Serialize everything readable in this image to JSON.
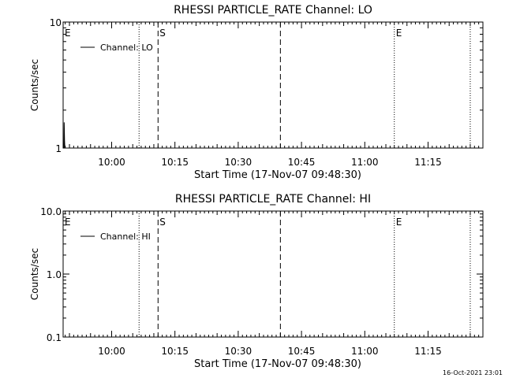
{
  "footer_timestamp": "16-Oct-2021 23:01",
  "colors": {
    "background": "#ffffff",
    "foreground": "#000000"
  },
  "chart_data": [
    {
      "type": "line",
      "title": "RHESSI PARTICLE_RATE Channel: LO",
      "xlabel": "Start Time (17-Nov-07 09:48:30)",
      "ylabel": "Counts/sec",
      "y_scale": "log",
      "ylim": [
        1,
        10
      ],
      "y_ticks": [
        {
          "value": 1,
          "label": "1"
        },
        {
          "value": 10,
          "label": "10"
        }
      ],
      "xlim": [
        "09:48:30",
        "11:28:00"
      ],
      "x_ticks": [
        "10:00",
        "10:15",
        "10:30",
        "10:45",
        "11:00",
        "11:15"
      ],
      "series": [
        {
          "name": "Channel: LO",
          "x": [
            "09:48:45",
            "09:48:50",
            "09:48:55"
          ],
          "y": [
            1.6,
            1.15,
            1.0
          ]
        }
      ],
      "legend": "upper-left",
      "markers": [
        {
          "time": "09:48:30",
          "style": "dotted",
          "label": "E"
        },
        {
          "time": "10:06:30",
          "style": "dotted",
          "label": ""
        },
        {
          "time": "10:11:00",
          "style": "dashed",
          "label": "S"
        },
        {
          "time": "10:40:00",
          "style": "dashed",
          "label": ""
        },
        {
          "time": "11:07:00",
          "style": "dotted",
          "label": "E"
        },
        {
          "time": "11:25:00",
          "style": "dotted",
          "label": ""
        }
      ]
    },
    {
      "type": "line",
      "title": "RHESSI PARTICLE_RATE Channel: HI",
      "xlabel": "Start Time (17-Nov-07 09:48:30)",
      "ylabel": "Counts/sec",
      "y_scale": "log",
      "ylim": [
        0.1,
        10
      ],
      "y_ticks": [
        {
          "value": 0.1,
          "label": "0.1"
        },
        {
          "value": 1,
          "label": "1.0"
        },
        {
          "value": 10,
          "label": "10.0"
        }
      ],
      "xlim": [
        "09:48:30",
        "11:28:00"
      ],
      "x_ticks": [
        "10:00",
        "10:15",
        "10:30",
        "10:45",
        "11:00",
        "11:15"
      ],
      "series": [
        {
          "name": "Channel: HI",
          "x": [],
          "y": []
        }
      ],
      "legend": "upper-left",
      "markers": [
        {
          "time": "09:48:30",
          "style": "dotted",
          "label": "E"
        },
        {
          "time": "10:06:30",
          "style": "dotted",
          "label": ""
        },
        {
          "time": "10:11:00",
          "style": "dashed",
          "label": "S"
        },
        {
          "time": "10:40:00",
          "style": "dashed",
          "label": ""
        },
        {
          "time": "11:07:00",
          "style": "dotted",
          "label": "E"
        },
        {
          "time": "11:25:00",
          "style": "dotted",
          "label": ""
        }
      ]
    }
  ]
}
